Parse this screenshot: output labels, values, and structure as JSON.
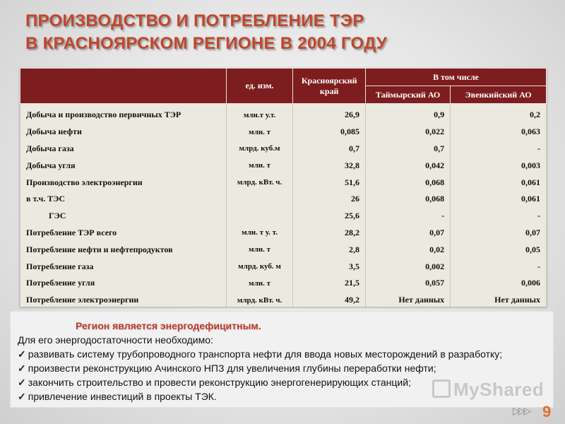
{
  "title": {
    "line1": "ПРОИЗВОДСТВО И ПОТРЕБЛЕНИЕ ТЭР",
    "line2": "В КРАСНОЯРСКОМ РЕГИОНЕ В 2004 ГОДУ"
  },
  "table": {
    "headers": {
      "unit": "ед. изм.",
      "region": "Красноярский край",
      "group": "В том числе",
      "sub1": "Таймырский АО",
      "sub2": "Эвенкийский АО"
    },
    "rows": [
      {
        "name": "Добыча и производство первичных ТЭР",
        "unit": "млн.т у.т.",
        "kr": "26,9",
        "t": "0,9",
        "e": "0,2"
      },
      {
        "name": "Добыча нефти",
        "unit": "млн. т",
        "kr": "0,085",
        "t": "0,022",
        "e": "0,063"
      },
      {
        "name": "Добыча газа",
        "unit": "млрд. куб.м",
        "kr": "0,7",
        "t": "0,7",
        "e": "-"
      },
      {
        "name": "Добыча угля",
        "unit": "млн.  т",
        "kr": "32,8",
        "t": "0,042",
        "e": "0,003"
      },
      {
        "name": "Производство электроэнергии",
        "unit": "млрд. кВт. ч.",
        "kr": "51,6",
        "t": "0,068",
        "e": "0,061"
      },
      {
        "name": "в т.ч. ТЭС",
        "unit": "",
        "kr": "26",
        "t": "0,068",
        "e": "0,061"
      },
      {
        "name": "ГЭС",
        "unit": "",
        "kr": "25,6",
        "t": "-",
        "e": "-"
      },
      {
        "name": "Потребление ТЭР всего",
        "unit": "млн. т у. т.",
        "kr": "28,2",
        "t": "0,07",
        "e": "0,07"
      },
      {
        "name": "Потребление нефти и нефтепродуктов",
        "unit": "млн.  т",
        "kr": "2,8",
        "t": "0,02",
        "e": "0,05"
      },
      {
        "name": "Потребление газа",
        "unit": "млрд. куб. м",
        "kr": "3,5",
        "t": "0,002",
        "e": "-"
      },
      {
        "name": "Потребление угля",
        "unit": "млн.  т",
        "kr": "21,5",
        "t": "0,057",
        "e": "0,006"
      },
      {
        "name": "Потребление электроэнергии",
        "unit": "млрд. кВт. ч.",
        "kr": "49,2",
        "t": "Нет данных",
        "e": "Нет данных"
      }
    ]
  },
  "note": {
    "highlight": "Регион является энергодефицитным.",
    "intro": "Для его энергодостаточности необходимо:",
    "items": [
      "развивать систему трубопроводного транспорта нефти для ввода новых месторождений в разработку;",
      "произвести реконструкцию Ачинского НПЗ для увеличения глубины переработки нефти;",
      "закончить строительство и провести реконструкцию энергогенерирующих станций;",
      "привлечение инвестиций в проекты ТЭК."
    ],
    "check_symbol": "✓"
  },
  "footer": {
    "watermark": "MyShared",
    "arrows": "▷▷▷",
    "page_number": "9"
  },
  "colors": {
    "title": "#c0472c",
    "header_bg": "#7e1d1f",
    "highlight": "#c0392b",
    "page_number": "#e0702a"
  }
}
